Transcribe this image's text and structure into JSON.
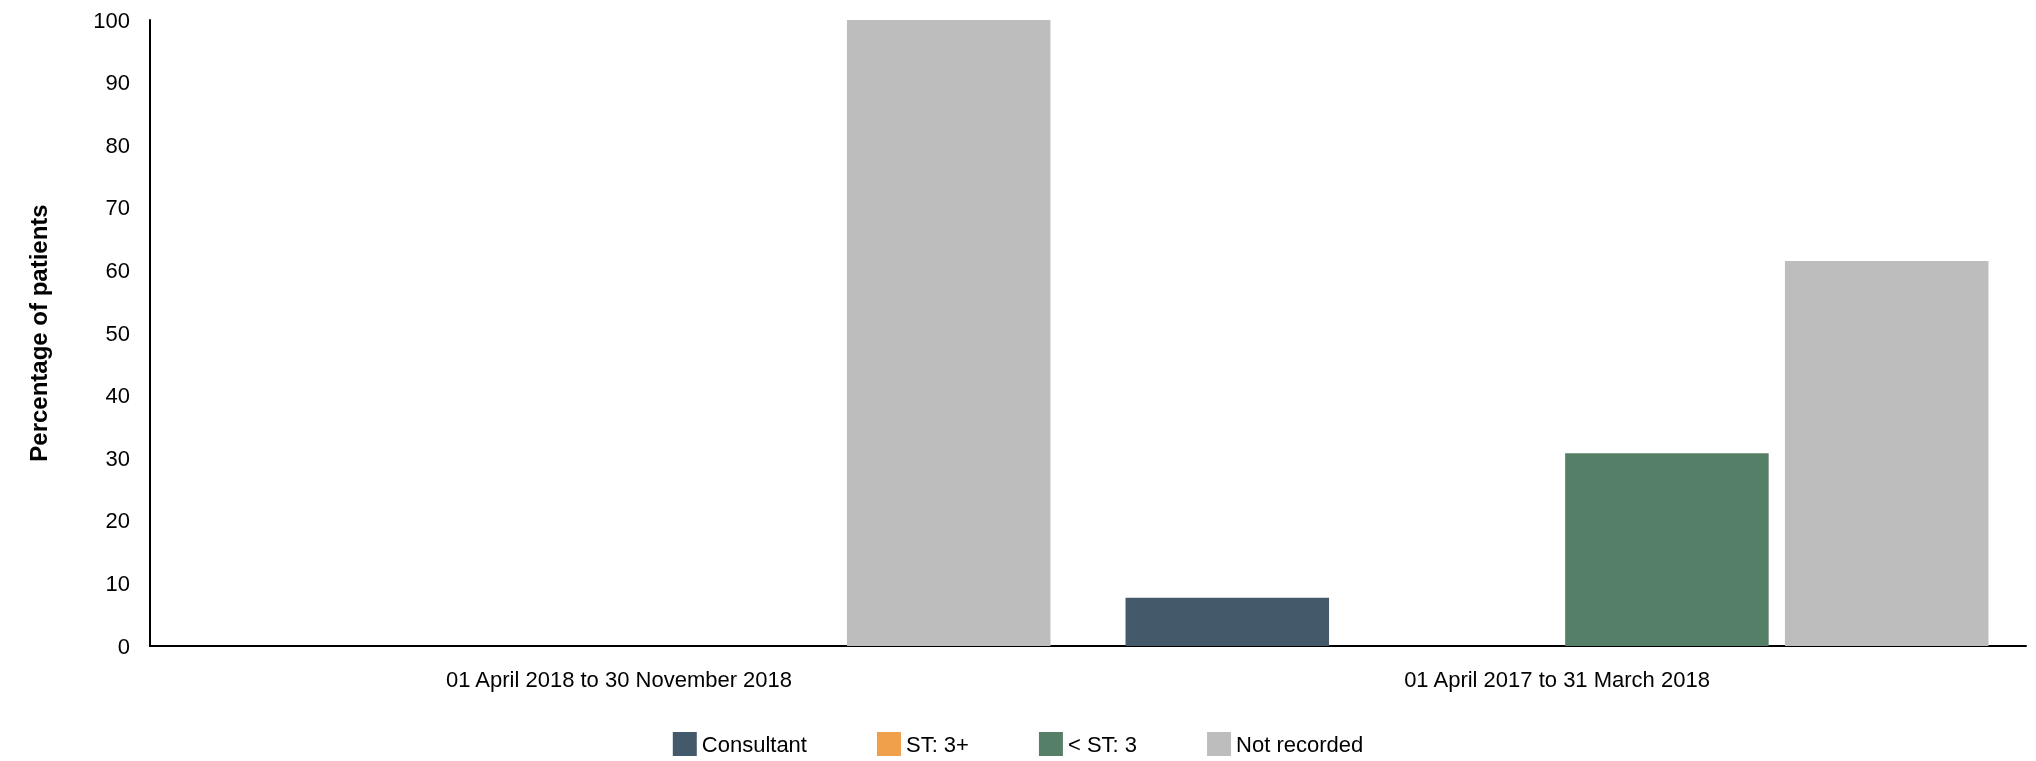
{
  "chart_data": {
    "type": "bar",
    "ylabel": "Percentage of patients",
    "categories": [
      "01 April 2018 to 30 November 2018",
      "01 April 2017 to 31 March 2018"
    ],
    "series": [
      {
        "name": "Consultant",
        "color": "#44596a",
        "values": [
          0,
          7.7
        ]
      },
      {
        "name": "ST: 3+",
        "color": "#f0a04b",
        "values": [
          0,
          0
        ]
      },
      {
        "name": "< ST: 3",
        "color": "#567f67",
        "values": [
          0,
          30.8
        ]
      },
      {
        "name": "Not recorded",
        "color": "#bdbdbd",
        "values": [
          100,
          61.5
        ]
      }
    ],
    "ylim": [
      0,
      100
    ],
    "yticks": [
      0,
      10,
      20,
      30,
      40,
      50,
      60,
      70,
      80,
      90,
      100
    ],
    "grid": false,
    "legend": "bottom"
  }
}
